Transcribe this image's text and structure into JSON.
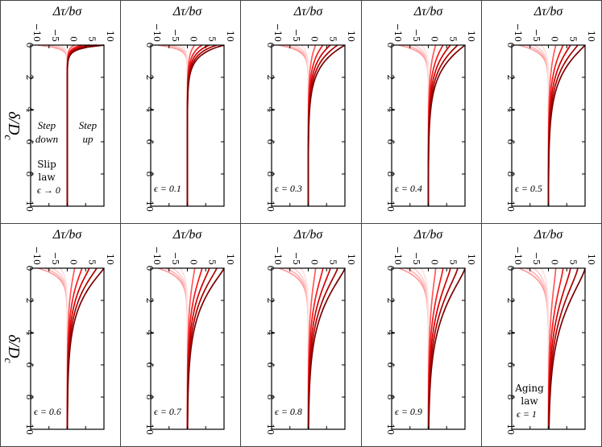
{
  "figure": {
    "xlabel": "Δτ/bσ",
    "ylabel": "δ/D_c",
    "ylabel_main": "δ/D",
    "ylabel_sub": "c",
    "xticks": [
      "−10",
      "−5",
      "0",
      "5",
      "10"
    ],
    "yticks": [
      "0",
      "2",
      "4",
      "6",
      "8",
      "10"
    ],
    "colors": {
      "step_up": [
        "#ff5a5a",
        "#f21a1a",
        "#d10000",
        "#a80000",
        "#7a0000"
      ],
      "step_down": [
        "#ff9a9a",
        "#ffb6b6",
        "#ffcfcf",
        "#ffe0e0"
      ],
      "frame": "#000000",
      "panel_border": "#444444"
    }
  },
  "chart_data": [
    {
      "type": "line",
      "epsilon": "→ 0",
      "label": "ϵ → 0",
      "text_blocks": [
        "Step",
        "down",
        "Step",
        "up",
        "Slip",
        "law"
      ],
      "xlim": [
        -10,
        10
      ],
      "ylim": [
        10,
        0
      ],
      "amplitudes": [
        -8,
        -6,
        -4,
        -2,
        2,
        4,
        6,
        8,
        10
      ]
    },
    {
      "type": "line",
      "epsilon": 0.1,
      "label": "ϵ = 0.1",
      "xlim": [
        -10,
        10
      ],
      "ylim": [
        10,
        0
      ],
      "amplitudes": [
        -8,
        -6,
        -4,
        -2,
        2,
        4,
        6,
        8,
        10
      ]
    },
    {
      "type": "line",
      "epsilon": 0.3,
      "label": "ϵ = 0.3",
      "xlim": [
        -10,
        10
      ],
      "ylim": [
        10,
        0
      ],
      "amplitudes": [
        -8,
        -6,
        -4,
        -2,
        2,
        4,
        6,
        8,
        10
      ]
    },
    {
      "type": "line",
      "epsilon": 0.4,
      "label": "ϵ = 0.4",
      "xlim": [
        -10,
        10
      ],
      "ylim": [
        10,
        0
      ],
      "amplitudes": [
        -8,
        -6,
        -4,
        -2,
        2,
        4,
        6,
        8,
        10
      ]
    },
    {
      "type": "line",
      "epsilon": 0.5,
      "label": "ϵ = 0.5",
      "xlim": [
        -10,
        10
      ],
      "ylim": [
        10,
        0
      ],
      "amplitudes": [
        -8,
        -6,
        -4,
        -2,
        2,
        4,
        6,
        8,
        10
      ]
    },
    {
      "type": "line",
      "epsilon": 0.6,
      "label": "ϵ = 0.6",
      "xlim": [
        -10,
        10
      ],
      "ylim": [
        10,
        0
      ],
      "amplitudes": [
        -8,
        -6,
        -4,
        -2,
        2,
        4,
        6,
        8,
        10
      ]
    },
    {
      "type": "line",
      "epsilon": 0.7,
      "label": "ϵ = 0.7",
      "xlim": [
        -10,
        10
      ],
      "ylim": [
        10,
        0
      ],
      "amplitudes": [
        -8,
        -6,
        -4,
        -2,
        2,
        4,
        6,
        8,
        10
      ]
    },
    {
      "type": "line",
      "epsilon": 0.8,
      "label": "ϵ = 0.8",
      "xlim": [
        -10,
        10
      ],
      "ylim": [
        10,
        0
      ],
      "amplitudes": [
        -8,
        -6,
        -4,
        -2,
        2,
        4,
        6,
        8,
        10
      ]
    },
    {
      "type": "line",
      "epsilon": 0.9,
      "label": "ϵ = 0.9",
      "xlim": [
        -10,
        10
      ],
      "ylim": [
        10,
        0
      ],
      "amplitudes": [
        -8,
        -6,
        -4,
        -2,
        2,
        4,
        6,
        8,
        10
      ]
    },
    {
      "type": "line",
      "epsilon": 1,
      "label": "ϵ = 1",
      "text_blocks": [
        "Aging",
        "law"
      ],
      "xlim": [
        -10,
        10
      ],
      "ylim": [
        10,
        0
      ],
      "amplitudes": [
        -8,
        -6,
        -4,
        -2,
        2,
        4,
        6,
        8,
        10
      ]
    }
  ]
}
